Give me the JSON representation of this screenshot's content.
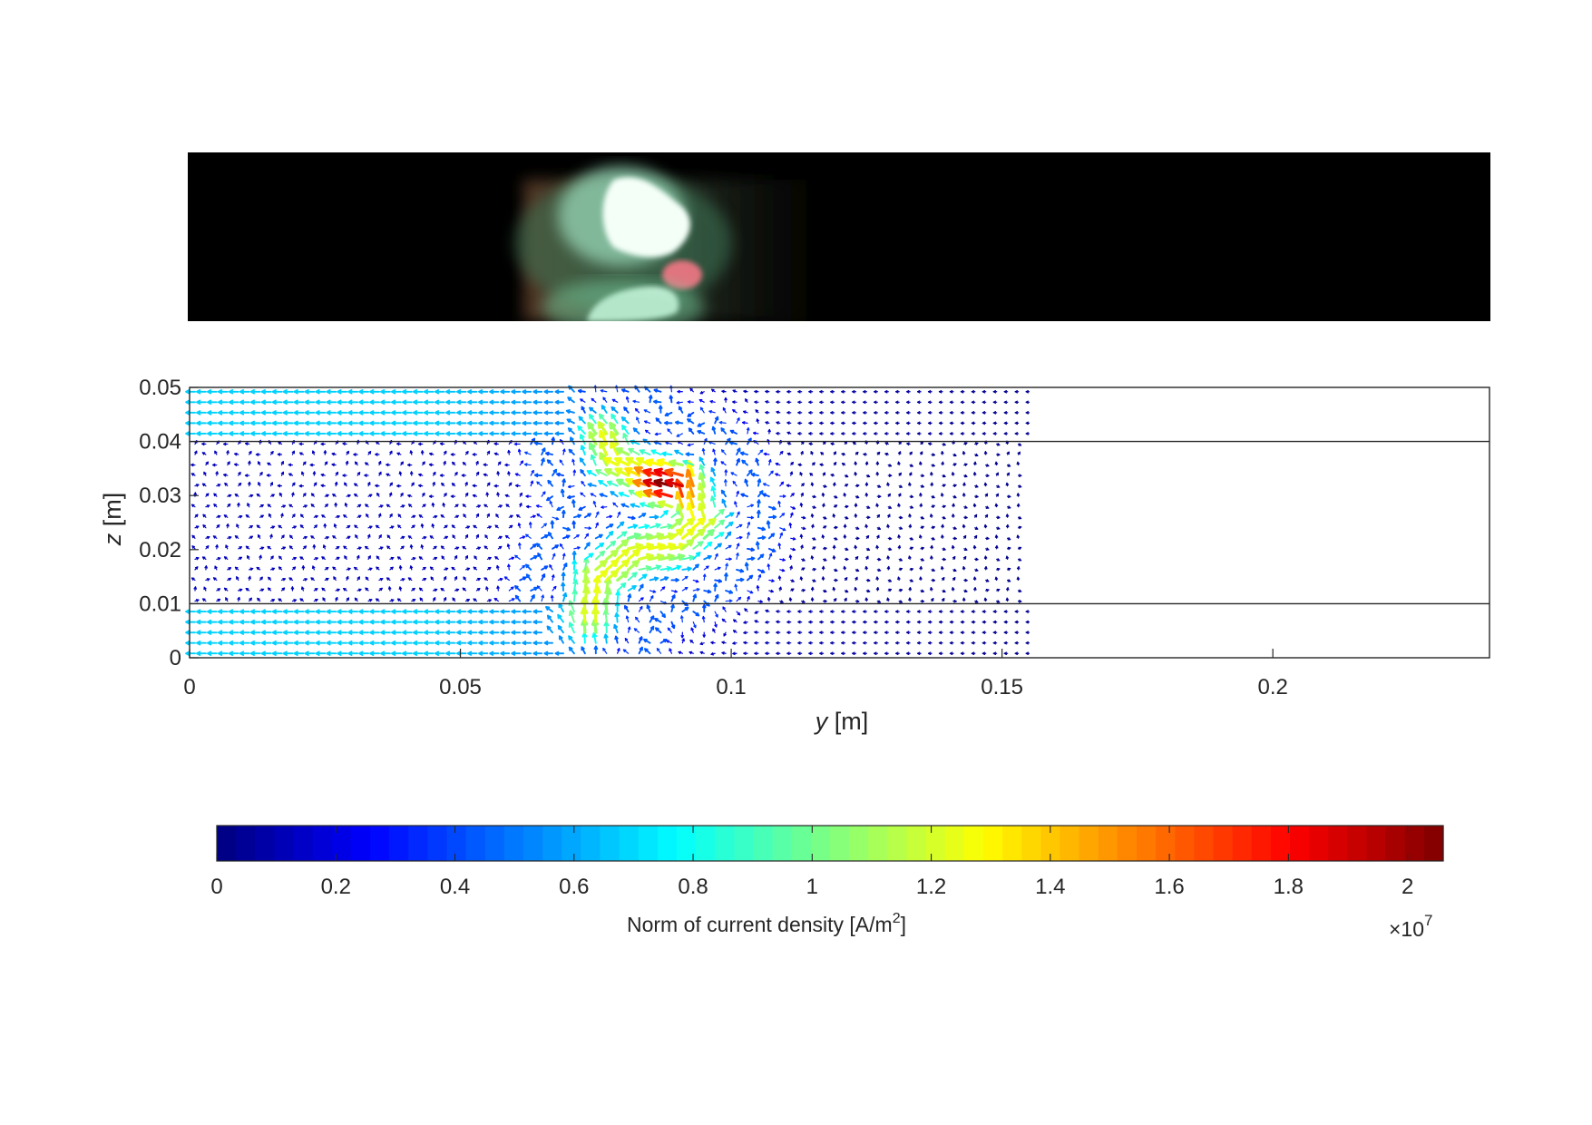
{
  "chart_data": {
    "type": "quiver",
    "xlabel": "y [m]",
    "ylabel": "z [m]",
    "xlim": [
      0,
      0.24
    ],
    "ylim": [
      0,
      0.05
    ],
    "x_ticks": [
      0,
      0.05,
      0.1,
      0.15,
      0.2
    ],
    "x_tick_labels": [
      "0",
      "0.05",
      "0.1",
      "0.15",
      "0.2"
    ],
    "y_ticks": [
      0,
      0.01,
      0.02,
      0.03,
      0.04,
      0.05
    ],
    "y_tick_labels": [
      "0",
      "0.01",
      "0.02",
      "0.03",
      "0.04",
      "0.05"
    ],
    "grid": false,
    "boundary_lines_z": [
      0.01,
      0.04
    ],
    "arc_path": [
      [
        0.074,
        0.007
      ],
      [
        0.075,
        0.014
      ],
      [
        0.081,
        0.019
      ],
      [
        0.089,
        0.021
      ],
      [
        0.094,
        0.025
      ],
      [
        0.092,
        0.031
      ],
      [
        0.085,
        0.033
      ],
      [
        0.079,
        0.036
      ],
      [
        0.077,
        0.04
      ]
    ],
    "peak_point": [
      0.089,
      0.032
    ],
    "colorbar": {
      "label": "Norm of current density [A/m",
      "label_superscript": "2",
      "label_suffix": "]",
      "multiplier": "×10",
      "multiplier_exponent": "7",
      "min": 0,
      "max": 2.06,
      "ticks": [
        0,
        0.2,
        0.4,
        0.6,
        0.8,
        1,
        1.2,
        1.4,
        1.6,
        1.8,
        2
      ],
      "tick_labels": [
        "0",
        "0.2",
        "0.4",
        "0.6",
        "0.8",
        "1",
        "1.2",
        "1.4",
        "1.6",
        "1.8",
        "2"
      ],
      "colormap": "jet"
    }
  }
}
